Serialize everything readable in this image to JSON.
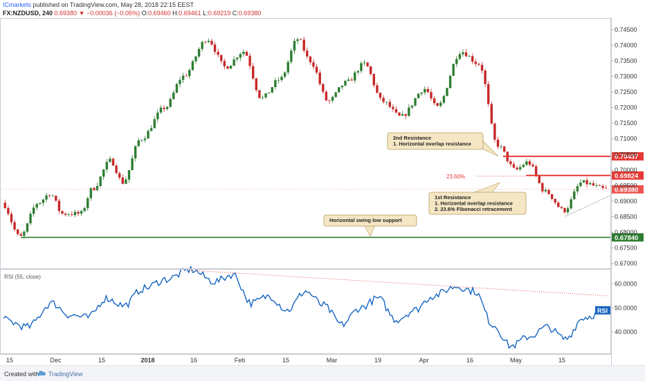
{
  "header": {
    "author": "ICmarkets",
    "published_text": "published on TradingView.com, May 28, 2018 22:15 EEST",
    "symbol": "FX:NZDUSD, 240",
    "last_price": "0.69380",
    "change": "▼ −0.00036 (−0.05%)",
    "o_label": "O:",
    "o_value": "0.69460",
    "h_label": "H:",
    "h_value": "0.69461",
    "l_label": "L:",
    "l_value": "0.69219",
    "c_label": "C:",
    "c_value": "0.69380"
  },
  "footer": {
    "created_with": "Created with",
    "brand": "TradingView"
  },
  "colors": {
    "up": "#2e7d32",
    "down": "#c62828",
    "rsi": "#1565c0",
    "resistance": "#e53935",
    "support": "#2e7d32",
    "current_price_line": "#ef9a9a",
    "callout_bg": "#f5e6c4",
    "callout_border": "#b59a5c"
  },
  "chart_data": [
    {
      "type": "candlestick",
      "symbol": "FX:NZDUSD",
      "interval": "240",
      "price_axis": {
        "ticks": [
          "0.74500",
          "0.74000",
          "0.73500",
          "0.73000",
          "0.72500",
          "0.72000",
          "0.71500",
          "0.71000",
          "0.70500",
          "0.70000",
          "0.69500",
          "0.69000",
          "0.68500",
          "0.68000",
          "0.67500",
          "0.67000"
        ],
        "range": [
          0.6685,
          0.7485
        ]
      },
      "time_axis": {
        "ticks": [
          "15",
          "Dec",
          "15",
          "2018",
          "16",
          "Feb",
          "15",
          "Mar",
          "19",
          "Apr",
          "16",
          "May",
          "15"
        ]
      },
      "path_anchors": [
        {
          "x": 0,
          "price": 0.6895
        },
        {
          "x": 0.03,
          "price": 0.6785
        },
        {
          "x": 0.06,
          "price": 0.6895
        },
        {
          "x": 0.08,
          "price": 0.6925
        },
        {
          "x": 0.1,
          "price": 0.686
        },
        {
          "x": 0.13,
          "price": 0.686
        },
        {
          "x": 0.15,
          "price": 0.694
        },
        {
          "x": 0.18,
          "price": 0.703
        },
        {
          "x": 0.2,
          "price": 0.696
        },
        {
          "x": 0.23,
          "price": 0.71
        },
        {
          "x": 0.27,
          "price": 0.72
        },
        {
          "x": 0.3,
          "price": 0.73
        },
        {
          "x": 0.34,
          "price": 0.742
        },
        {
          "x": 0.37,
          "price": 0.733
        },
        {
          "x": 0.4,
          "price": 0.738
        },
        {
          "x": 0.43,
          "price": 0.723
        },
        {
          "x": 0.46,
          "price": 0.729
        },
        {
          "x": 0.49,
          "price": 0.742
        },
        {
          "x": 0.51,
          "price": 0.735
        },
        {
          "x": 0.54,
          "price": 0.722
        },
        {
          "x": 0.57,
          "price": 0.728
        },
        {
          "x": 0.6,
          "price": 0.734
        },
        {
          "x": 0.63,
          "price": 0.722
        },
        {
          "x": 0.66,
          "price": 0.717
        },
        {
          "x": 0.7,
          "price": 0.726
        },
        {
          "x": 0.72,
          "price": 0.72
        },
        {
          "x": 0.76,
          "price": 0.738
        },
        {
          "x": 0.79,
          "price": 0.734
        },
        {
          "x": 0.82,
          "price": 0.708
        },
        {
          "x": 0.85,
          "price": 0.7
        },
        {
          "x": 0.87,
          "price": 0.7025
        },
        {
          "x": 0.9,
          "price": 0.693
        },
        {
          "x": 0.93,
          "price": 0.687
        },
        {
          "x": 0.96,
          "price": 0.696
        },
        {
          "x": 1,
          "price": 0.6938
        }
      ],
      "price_labels": [
        {
          "text": "0.70437",
          "price": 0.70437,
          "color": "#e53935",
          "kind": "resistance"
        },
        {
          "text": "0.69824",
          "price": 0.69824,
          "color": "#e53935",
          "kind": "resistance"
        },
        {
          "text": "0.69380",
          "price": 0.6938,
          "color": "#ef5350",
          "kind": "current"
        },
        {
          "text": "0.67840",
          "price": 0.6784,
          "color": "#2e7d32",
          "kind": "support"
        }
      ],
      "annotations": {
        "fib_label": "23.60%",
        "callouts": [
          {
            "lines": [
              "2nd Resistance",
              "1. Horizontal overlap resistance"
            ]
          },
          {
            "lines": [
              "1st Resistance",
              "1. Horizontal overlap resistance",
              "2. 23.6% Fibonacci retracement"
            ]
          },
          {
            "lines": [
              "Horizontal swing low support"
            ]
          }
        ]
      }
    },
    {
      "type": "line",
      "title": "RSI (55, close)",
      "legend_tag": "RSI",
      "y_axis": {
        "ticks": [
          "60.0000",
          "50.0000",
          "40.0000"
        ],
        "range": [
          31,
          66
        ]
      },
      "path_anchors": [
        {
          "x": 0,
          "value": 45
        },
        {
          "x": 0.04,
          "value": 42
        },
        {
          "x": 0.08,
          "value": 52
        },
        {
          "x": 0.11,
          "value": 47
        },
        {
          "x": 0.14,
          "value": 46
        },
        {
          "x": 0.17,
          "value": 54
        },
        {
          "x": 0.2,
          "value": 51
        },
        {
          "x": 0.23,
          "value": 58
        },
        {
          "x": 0.27,
          "value": 62
        },
        {
          "x": 0.31,
          "value": 66
        },
        {
          "x": 0.35,
          "value": 61
        },
        {
          "x": 0.38,
          "value": 64
        },
        {
          "x": 0.41,
          "value": 52
        },
        {
          "x": 0.44,
          "value": 55
        },
        {
          "x": 0.47,
          "value": 49
        },
        {
          "x": 0.5,
          "value": 57
        },
        {
          "x": 0.53,
          "value": 51
        },
        {
          "x": 0.56,
          "value": 43
        },
        {
          "x": 0.59,
          "value": 50
        },
        {
          "x": 0.62,
          "value": 54
        },
        {
          "x": 0.65,
          "value": 45
        },
        {
          "x": 0.68,
          "value": 49
        },
        {
          "x": 0.71,
          "value": 55
        },
        {
          "x": 0.75,
          "value": 59
        },
        {
          "x": 0.78,
          "value": 57
        },
        {
          "x": 0.81,
          "value": 43
        },
        {
          "x": 0.84,
          "value": 34
        },
        {
          "x": 0.87,
          "value": 38
        },
        {
          "x": 0.9,
          "value": 42
        },
        {
          "x": 0.93,
          "value": 37
        },
        {
          "x": 0.96,
          "value": 46
        },
        {
          "x": 1,
          "value": 49
        }
      ]
    }
  ]
}
